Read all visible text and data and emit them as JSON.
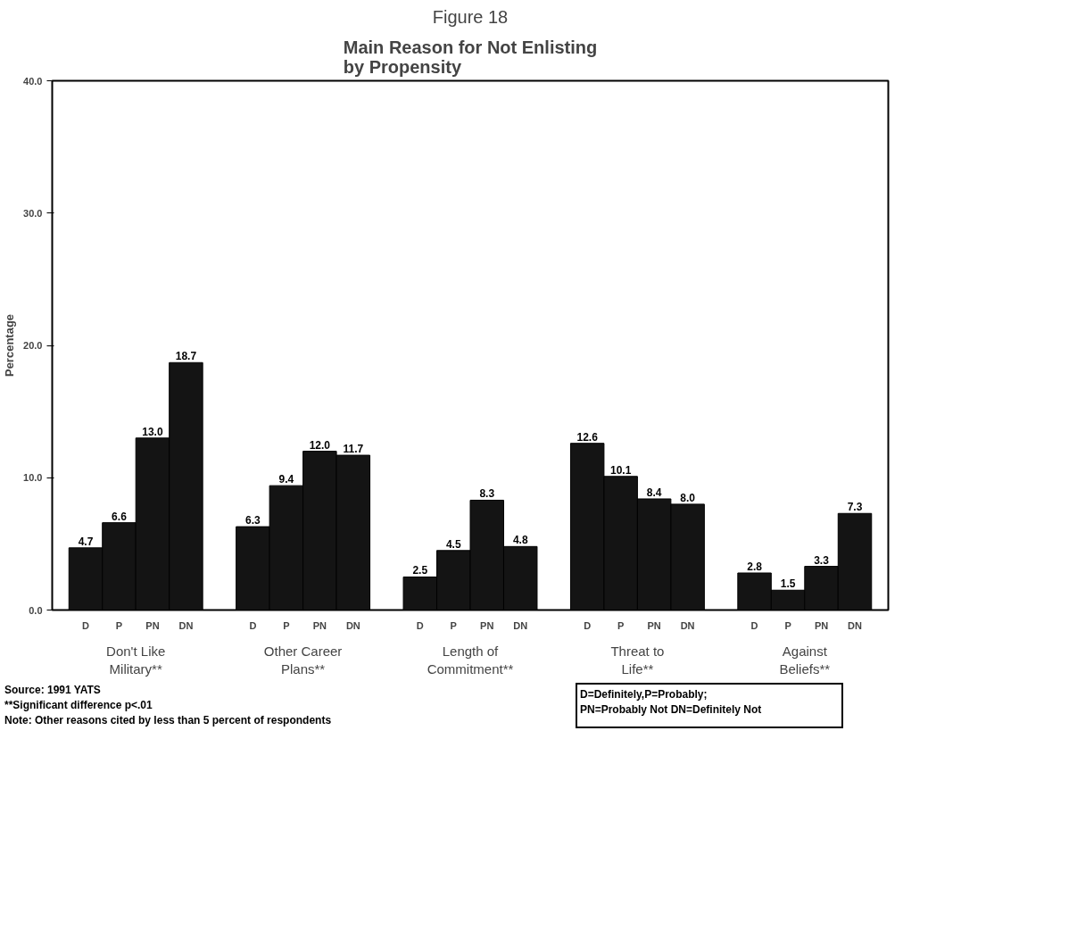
{
  "chart_data": {
    "type": "bar",
    "title": "Figure 18",
    "subtitle": "Main Reason for Not Enlisting\nby Propensity",
    "ylabel": "Percentage",
    "categories": [
      "Don't Like\nMilitary**",
      "Other Career\nPlans**",
      "Length of\nCommitment**",
      "Threat to\nLife**",
      "Against\nBeliefs**"
    ],
    "series": [
      {
        "name": "D",
        "color": "#141414",
        "values": [
          4.7,
          6.3,
          2.5,
          12.6,
          2.8
        ],
        "value_labels": [
          "4.7",
          "6.3",
          "2.5",
          "12.6",
          "2.8"
        ]
      },
      {
        "name": "P",
        "color": "#141414",
        "values": [
          6.6,
          9.4,
          4.5,
          10.1,
          1.5
        ],
        "value_labels": [
          "6.6",
          "9.4",
          "4.5",
          "10.1",
          "1.5"
        ]
      },
      {
        "name": "PN",
        "color": "#141414",
        "values": [
          13.0,
          12.0,
          8.3,
          8.4,
          3.3
        ],
        "value_labels": [
          "13.0",
          "12.0",
          "8.3",
          "8.4",
          "3.3"
        ]
      },
      {
        "name": "DN",
        "color": "#141414",
        "values": [
          18.7,
          11.7,
          4.8,
          8.0,
          7.3
        ],
        "value_labels": [
          "18.7",
          "11.7",
          "4.8",
          "8.0",
          "7.3"
        ]
      }
    ],
    "ylim": [
      0,
      40
    ],
    "yticks": [
      {
        "value": 0,
        "label": "0.0"
      },
      {
        "value": 10,
        "label": "10.0"
      },
      {
        "value": 20,
        "label": "20.0"
      },
      {
        "value": 30,
        "label": "30.0"
      },
      {
        "value": 40,
        "label": "40.0"
      }
    ],
    "grid": false,
    "annotations": [
      "Source:  1991 YATS\n**Significant difference p<.01\nNote: Other reasons cited by less than 5 percent of respondents",
      "D=Definitely,P=Probably;\nPN=Probably Not DN=Definitely Not"
    ]
  }
}
